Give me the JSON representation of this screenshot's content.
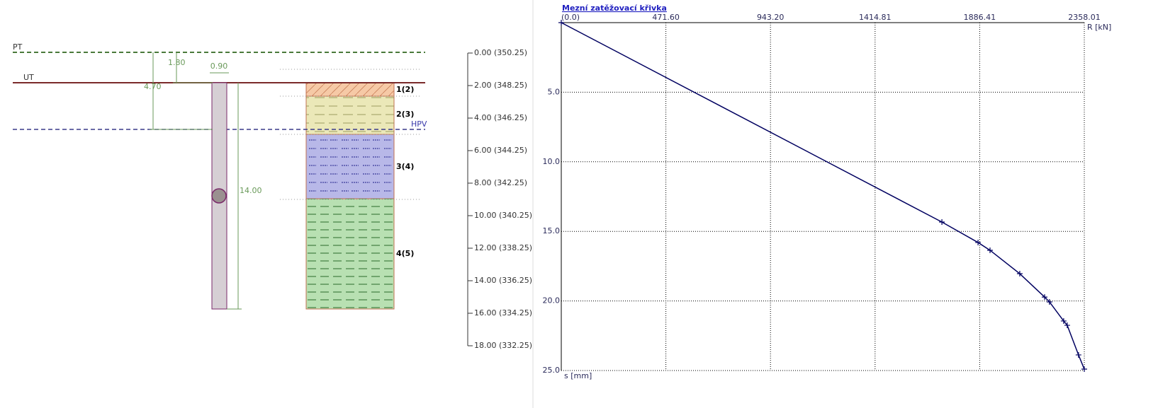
{
  "diagram": {
    "levels": {
      "pt": "PT",
      "ut": "UT",
      "hpv": "HPV"
    },
    "dimensions": {
      "pt_ut": "1.80",
      "pile_diameter": "0.90",
      "pt_hpv": "4.70",
      "pile_length": "14.00"
    },
    "layers": [
      "1(2)",
      "2(3)",
      "3(4)",
      "4(5)"
    ],
    "depth_scale": [
      "0.00 (350.25)",
      "2.00 (348.25)",
      "4.00 (346.25)",
      "6.00 (344.25)",
      "8.00 (342.25)",
      "10.00 (340.25)",
      "12.00 (338.25)",
      "14.00 (336.25)",
      "16.00 (334.25)",
      "18.00 (332.25)"
    ]
  },
  "chart_data": {
    "type": "line",
    "title": "Mezní zatěžovací křivka",
    "x_label": "R [kN]",
    "y_label": "s [mm]",
    "x": [
      0,
      1716,
      1879,
      1933,
      2067,
      2179,
      2201,
      2265,
      2281,
      2332,
      2358
    ],
    "values": [
      0,
      14.33,
      15.8,
      16.36,
      18.04,
      19.72,
      20.07,
      21.44,
      21.75,
      23.88,
      24.9
    ],
    "color": "#000060",
    "xlim": [
      0,
      2358.01
    ],
    "xticks": [
      {
        "value": 0,
        "label": "(0.0)"
      },
      {
        "value": 471.6,
        "label": "471.60"
      },
      {
        "value": 943.2,
        "label": "943.20"
      },
      1414.81,
      1886.41,
      2358.01
    ],
    "ylim": [
      0,
      25
    ],
    "yticks": [
      {
        "value": 5,
        "label": "5.0"
      },
      {
        "value": 10,
        "label": "10.0"
      },
      {
        "value": 15,
        "label": "15.0"
      },
      {
        "value": 20,
        "label": "20.0"
      },
      {
        "value": 25,
        "label": "25.0"
      }
    ],
    "y_inverted": true,
    "x_axis_position": "top",
    "grid": true,
    "markers": true
  }
}
